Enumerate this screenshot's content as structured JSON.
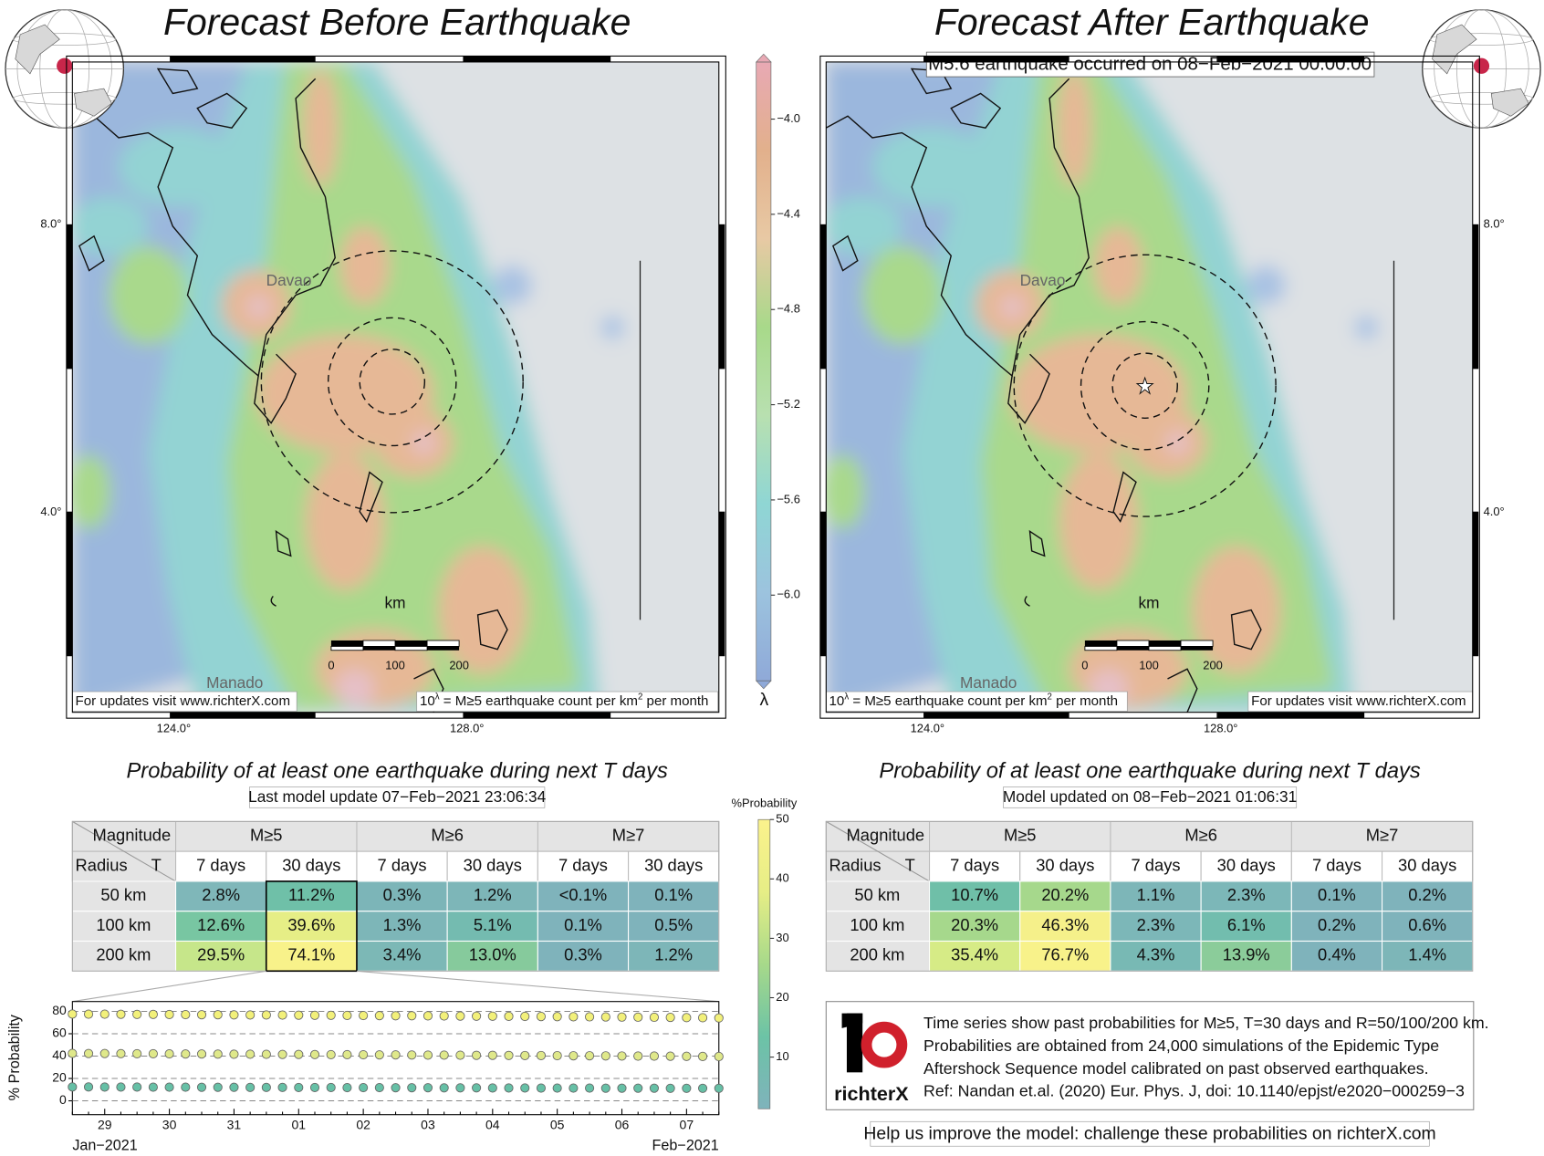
{
  "left_panel": {
    "title": "Forecast Before Earthquake",
    "table_title": "Probability of at least one earthquake during next T days",
    "table_subtitle": "Last model update 07−Feb−2021 23:06:34",
    "table": {
      "rows": [
        {
          "label": "50 km",
          "cells": [
            "2.8%",
            "11.2%",
            "0.3%",
            "1.2%",
            "<0.1%",
            "0.1%"
          ],
          "colors": [
            "#7fb7b9",
            "#6fc0a8",
            "#7cb5b8",
            "#7db6b8",
            "#7fb3bb",
            "#7fb3bb"
          ]
        },
        {
          "label": "100 km",
          "cells": [
            "12.6%",
            "39.6%",
            "1.3%",
            "5.1%",
            "0.1%",
            "0.5%"
          ],
          "colors": [
            "#78c6a2",
            "#e6ee86",
            "#7db6b8",
            "#74bbb0",
            "#7fb3bb",
            "#7fb3bb"
          ]
        },
        {
          "label": "200 km",
          "cells": [
            "29.5%",
            "74.1%",
            "3.4%",
            "13.0%",
            "0.3%",
            "1.2%"
          ],
          "colors": [
            "#c6e68a",
            "#f8f28a",
            "#7cb8b6",
            "#86ca9c",
            "#7fb3bb",
            "#7db6b8"
          ]
        }
      ]
    }
  },
  "right_panel": {
    "title": "Forecast After Earthquake",
    "event_note": "M5.6 earthquake occurred on 08−Feb−2021 00:00:00",
    "table_title": "Probability of at least one earthquake during next T days",
    "table_subtitle": "Model updated on 08−Feb−2021 01:06:31",
    "table": {
      "rows": [
        {
          "label": "50 km",
          "cells": [
            "10.7%",
            "20.2%",
            "1.1%",
            "2.3%",
            "0.1%",
            "0.2%"
          ],
          "colors": [
            "#6fbfa8",
            "#a6d88c",
            "#7db6b8",
            "#7cb7b8",
            "#7fb3bb",
            "#7fb3bb"
          ]
        },
        {
          "label": "100 km",
          "cells": [
            "20.3%",
            "46.3%",
            "2.3%",
            "6.1%",
            "0.2%",
            "0.6%"
          ],
          "colors": [
            "#a6d88c",
            "#f5f08a",
            "#7cb7b8",
            "#72bdae",
            "#7fb3bb",
            "#7fb3bb"
          ]
        },
        {
          "label": "200 km",
          "cells": [
            "35.4%",
            "76.7%",
            "4.3%",
            "13.9%",
            "0.4%",
            "1.4%"
          ],
          "colors": [
            "#d6eb86",
            "#f8f28a",
            "#78b9b4",
            "#8bcc9a",
            "#7fb3bb",
            "#7db6b8"
          ]
        }
      ]
    }
  },
  "table_header": {
    "magnitude": "Magnitude",
    "radius": "Radius",
    "t": "T",
    "groups": [
      "M≥5",
      "M≥6",
      "M≥7"
    ],
    "columns": [
      "7 days",
      "30 days",
      "7 days",
      "30 days",
      "7 days",
      "30 days"
    ]
  },
  "map_labels": {
    "cities": [
      "Davao",
      "Manado"
    ],
    "scale_unit": "km",
    "scale_ticks": [
      "0",
      "100",
      "200"
    ],
    "lat_ticks": [
      "8.0°",
      "4.0°"
    ],
    "lon_ticks": [
      "124.0°",
      "128.0°"
    ],
    "updates": "For updates visit www.richterX.com",
    "note": {
      "base": "10",
      "exponent": "λ",
      "text": " = M≥5 earthquake count per km",
      "unit_exponent": "2",
      "tail": " per month"
    }
  },
  "lambda_colorbar": {
    "label": "λ",
    "ylim": [
      -6.36,
      -3.76
    ],
    "yticks": [
      {
        "value": -4.0,
        "label": "−4.0"
      },
      {
        "value": -4.4,
        "label": "−4.4"
      },
      {
        "value": -4.8,
        "label": "−4.8"
      },
      {
        "value": -5.2,
        "label": "−5.2"
      },
      {
        "value": -5.6,
        "label": "−5.6"
      },
      {
        "value": -6.0,
        "label": "−6.0"
      }
    ],
    "colors": [
      "#8fa9d8",
      "#9cc3de",
      "#8fd6d4",
      "#b8e0b0",
      "#a8d98a",
      "#e8c9a4",
      "#e2b08c",
      "#e8a9b4"
    ]
  },
  "probability_colorbar": {
    "label": "%Probability",
    "ylim": [
      1.3,
      50
    ],
    "yticks": [
      10,
      20,
      30,
      40,
      50
    ],
    "colors": [
      "#7fb3bb",
      "#6cc3a6",
      "#a7d98a",
      "#e6ee86",
      "#fbf28c"
    ]
  },
  "chart_data": {
    "type": "scatter",
    "ylabel": "% Probability",
    "categories": [
      null,
      null,
      "29",
      null,
      null,
      null,
      "30",
      null,
      null,
      null,
      "31",
      null,
      null,
      null,
      "01",
      null,
      null,
      null,
      "02",
      null,
      null,
      null,
      "03",
      null,
      null,
      null,
      "04",
      null,
      null,
      null,
      "05",
      null,
      null,
      null,
      "06",
      null,
      null,
      null,
      "07",
      null,
      null
    ],
    "period_labels": [
      "Jan−2021",
      "Feb−2021"
    ],
    "ylim": [
      -12.4,
      88.8
    ],
    "yticks": [
      0,
      20,
      40,
      60,
      80
    ],
    "grid": true,
    "series": [
      {
        "color": "#f2f07a",
        "values": [
          77.6,
          77.5,
          77.5,
          77.4,
          77.3,
          77.3,
          77.2,
          77.1,
          77.0,
          77.0,
          76.9,
          76.8,
          76.8,
          76.7,
          76.6,
          76.5,
          76.5,
          76.4,
          76.3,
          76.2,
          76.1,
          76.1,
          76.0,
          75.9,
          75.8,
          75.7,
          75.7,
          75.6,
          75.5,
          75.4,
          75.3,
          75.2,
          75.1,
          75.0,
          74.9,
          74.8,
          74.7,
          74.6,
          74.4,
          74.3,
          74.1
        ]
      },
      {
        "color": "#dfe88a",
        "values": [
          42.4,
          42.3,
          42.3,
          42.2,
          42.1,
          42.1,
          42.0,
          41.9,
          41.9,
          41.8,
          41.7,
          41.7,
          41.6,
          41.5,
          41.5,
          41.4,
          41.3,
          41.3,
          41.2,
          41.1,
          41.1,
          41.0,
          40.9,
          40.9,
          40.8,
          40.7,
          40.7,
          40.6,
          40.5,
          40.5,
          40.4,
          40.3,
          40.3,
          40.2,
          40.1,
          40.0,
          40.0,
          39.9,
          39.8,
          39.7,
          39.6
        ]
      },
      {
        "color": "#66c0a6",
        "values": [
          12.4,
          12.4,
          12.3,
          12.3,
          12.3,
          12.2,
          12.2,
          12.2,
          12.1,
          12.1,
          12.1,
          12.0,
          12.0,
          12.0,
          11.9,
          11.9,
          11.9,
          11.8,
          11.8,
          11.8,
          11.7,
          11.7,
          11.7,
          11.6,
          11.6,
          11.6,
          11.5,
          11.5,
          11.5,
          11.4,
          11.4,
          11.4,
          11.4,
          11.3,
          11.3,
          11.3,
          11.3,
          11.2,
          11.2,
          11.2,
          11.2
        ]
      }
    ]
  },
  "info": {
    "logo": "richterX",
    "lines": [
      "Time series show past probabilities for M≥5, T=30 days and R=50/100/200 km.",
      "Probabilities are obtained from 24,000 simulations of the Epidemic Type",
      "Aftershock Sequence model calibrated on past observed earthquakes.",
      "Ref: Nandan et.al. (2020) Eur. Phys. J, doi: 10.1140/epjst/e2020−000259−3"
    ]
  },
  "footer": "Help us improve the model: challenge these probabilities on richterX.com"
}
